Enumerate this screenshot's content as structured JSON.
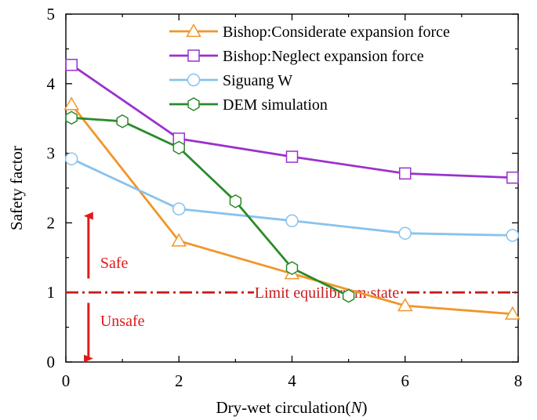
{
  "chart_data": {
    "type": "line",
    "xlabel_prefix": "Dry-wet circulation(",
    "xlabel_var": "N",
    "xlabel_suffix": ")",
    "ylabel": "Safety factor",
    "xlim": [
      0,
      8
    ],
    "ylim": [
      0,
      5
    ],
    "xticks": [
      0,
      2,
      4,
      6,
      8
    ],
    "yticks": [
      0,
      1,
      2,
      3,
      4,
      5
    ],
    "legend_position": "top-right",
    "series": [
      {
        "name": "Bishop:Considerate expansion force",
        "color": "#f0962a",
        "marker": "triangle",
        "x": [
          0.1,
          2,
          4,
          6,
          7.9
        ],
        "y": [
          3.7,
          1.74,
          1.27,
          0.81,
          0.69
        ]
      },
      {
        "name": "Bishop:Neglect expansion force",
        "color": "#9932cc",
        "marker": "square",
        "x": [
          0.1,
          2,
          4,
          6,
          7.9
        ],
        "y": [
          4.27,
          3.21,
          2.95,
          2.71,
          2.65
        ]
      },
      {
        "name": "Siguang W",
        "color": "#87c3ee",
        "marker": "circle",
        "x": [
          0.1,
          2,
          4,
          6,
          7.9
        ],
        "y": [
          2.92,
          2.2,
          2.03,
          1.85,
          1.82
        ]
      },
      {
        "name": "DEM simulation",
        "color": "#2a8a2a",
        "marker": "hexagon",
        "x": [
          0.1,
          1,
          2,
          3,
          4,
          5
        ],
        "y": [
          3.51,
          3.46,
          3.08,
          2.31,
          1.35,
          0.95
        ]
      }
    ],
    "reference_line": {
      "y": 1,
      "label": "Limit equilibrium state",
      "color": "#c81c1c"
    },
    "annotations": {
      "safe_label": "Safe",
      "unsafe_label": "Unsafe",
      "arrow_x": 0.4,
      "safe_arrow_y_range": [
        1.2,
        2.1
      ],
      "unsafe_arrow_y_range": [
        0.05,
        0.85
      ],
      "color": "#e01a1a"
    }
  }
}
